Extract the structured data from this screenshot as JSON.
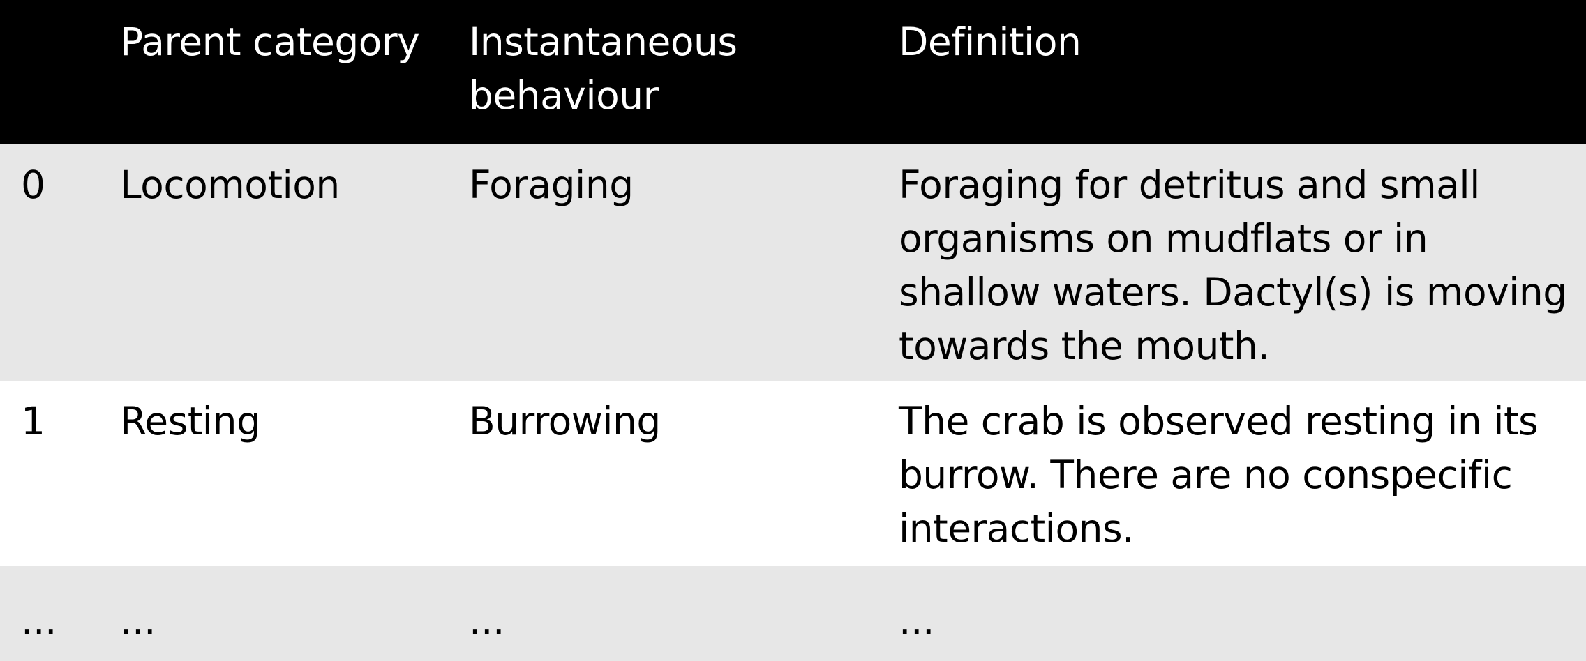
{
  "table": {
    "headers": {
      "index": "",
      "parent_category": "Parent category",
      "instantaneous_behaviour": "Instantaneous behaviour",
      "definition": "Definition"
    },
    "rows": [
      {
        "index": "0",
        "parent_category": "Locomotion",
        "instantaneous_behaviour": "Foraging",
        "definition": "Foraging for detritus and small organisms on mudflats or in shallow waters. Dactyl(s) is moving towards the mouth."
      },
      {
        "index": "1",
        "parent_category": "Resting",
        "instantaneous_behaviour": "Burrowing",
        "definition": "The crab is observed resting in its burrow. There are no conspecific interactions."
      },
      {
        "index": "...",
        "parent_category": "...",
        "instantaneous_behaviour": "...",
        "definition": "..."
      }
    ]
  }
}
